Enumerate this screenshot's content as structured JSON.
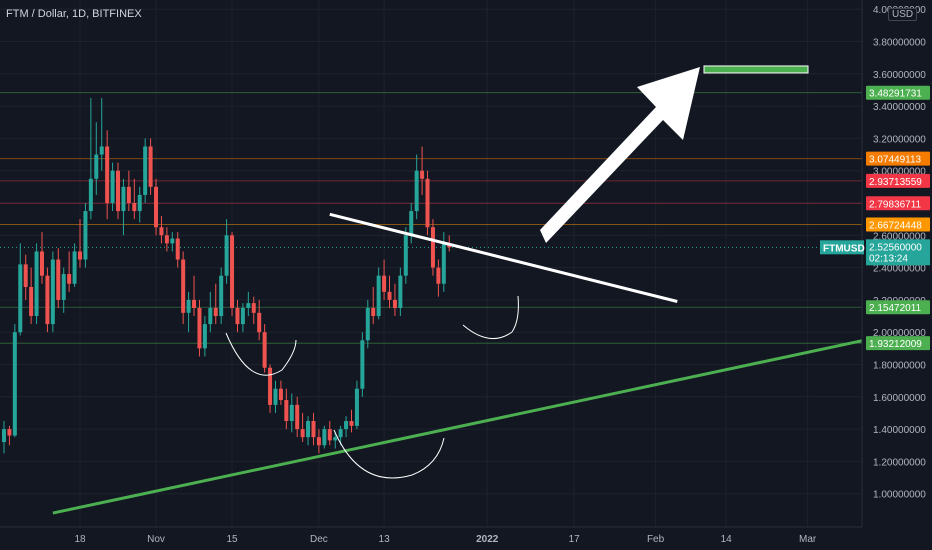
{
  "header": {
    "title": "FTM / Dollar, 1D, BITFINEX",
    "currency": "USD"
  },
  "colors": {
    "background": "#131722",
    "up": "#26a69a",
    "down": "#ef5350",
    "axis_text": "#b2b5be",
    "grid": "#1e222d"
  },
  "chart_data": {
    "type": "candlestick",
    "symbol": "FTMUSD",
    "ylim": [
      0.8,
      4.0
    ],
    "y_ticks": [
      "1.00000000",
      "1.20000000",
      "1.40000000",
      "1.60000000",
      "1.80000000",
      "2.00000000",
      "2.20000000",
      "2.40000000",
      "2.60000000",
      "2.80000000",
      "3.00000000",
      "3.20000000",
      "3.40000000",
      "3.60000000",
      "3.80000000",
      "4.00000000"
    ],
    "y_tick_values": [
      1.0,
      1.2,
      1.4,
      1.6,
      1.8,
      2.0,
      2.2,
      2.4,
      2.6,
      2.8,
      3.0,
      3.2,
      3.4,
      3.6,
      3.8,
      4.0
    ],
    "x_ticks": [
      {
        "label": "18",
        "day": 0
      },
      {
        "label": "Nov",
        "day": 14
      },
      {
        "label": "15",
        "day": 28
      },
      {
        "label": "Dec",
        "day": 44
      },
      {
        "label": "13",
        "day": 56
      },
      {
        "label": "2022",
        "day": 75
      },
      {
        "label": "17",
        "day": 91
      },
      {
        "label": "Feb",
        "day": 106
      },
      {
        "label": "14",
        "day": 119
      },
      {
        "label": "Mar",
        "day": 134
      }
    ],
    "start_day": -14,
    "candles": [
      [
        1.32,
        1.45,
        1.25,
        1.4
      ],
      [
        1.4,
        1.42,
        1.3,
        1.36
      ],
      [
        1.36,
        2.05,
        1.35,
        2.0
      ],
      [
        2.0,
        2.55,
        1.98,
        2.42
      ],
      [
        2.42,
        2.48,
        2.2,
        2.28
      ],
      [
        2.28,
        2.4,
        2.05,
        2.1
      ],
      [
        2.1,
        2.55,
        2.05,
        2.5
      ],
      [
        2.5,
        2.62,
        2.3,
        2.35
      ],
      [
        2.35,
        2.4,
        2.0,
        2.05
      ],
      [
        2.05,
        2.5,
        2.0,
        2.45
      ],
      [
        2.45,
        2.52,
        2.15,
        2.2
      ],
      [
        2.2,
        2.4,
        2.12,
        2.36
      ],
      [
        2.36,
        2.5,
        2.25,
        2.3
      ],
      [
        2.3,
        2.55,
        2.28,
        2.5
      ],
      [
        2.5,
        2.7,
        2.4,
        2.45
      ],
      [
        2.45,
        2.8,
        2.4,
        2.75
      ],
      [
        2.75,
        3.45,
        2.7,
        2.95
      ],
      [
        2.95,
        3.3,
        2.85,
        3.1
      ],
      [
        3.1,
        3.45,
        3.0,
        3.15
      ],
      [
        3.15,
        3.25,
        2.7,
        2.8
      ],
      [
        2.8,
        3.05,
        2.75,
        3.0
      ],
      [
        3.0,
        3.05,
        2.7,
        2.75
      ],
      [
        2.75,
        2.95,
        2.6,
        2.9
      ],
      [
        2.9,
        3.0,
        2.75,
        2.8
      ],
      [
        2.8,
        2.95,
        2.7,
        2.75
      ],
      [
        2.75,
        2.9,
        2.68,
        2.85
      ],
      [
        2.85,
        3.2,
        2.8,
        3.15
      ],
      [
        3.15,
        3.2,
        2.85,
        2.9
      ],
      [
        2.9,
        2.95,
        2.6,
        2.65
      ],
      [
        2.65,
        2.72,
        2.55,
        2.6
      ],
      [
        2.6,
        2.65,
        2.5,
        2.55
      ],
      [
        2.55,
        2.62,
        2.5,
        2.58
      ],
      [
        2.58,
        2.62,
        2.4,
        2.45
      ],
      [
        2.45,
        2.5,
        2.05,
        2.12
      ],
      [
        2.12,
        2.25,
        2.0,
        2.2
      ],
      [
        2.2,
        2.35,
        2.1,
        2.15
      ],
      [
        2.15,
        2.2,
        1.85,
        1.9
      ],
      [
        1.9,
        2.1,
        1.85,
        2.05
      ],
      [
        2.05,
        2.25,
        2.0,
        2.15
      ],
      [
        2.15,
        2.3,
        2.05,
        2.1
      ],
      [
        2.1,
        2.4,
        2.05,
        2.35
      ],
      [
        2.35,
        2.7,
        2.3,
        2.6
      ],
      [
        2.6,
        2.62,
        2.1,
        2.15
      ],
      [
        2.15,
        2.2,
        2.0,
        2.05
      ],
      [
        2.05,
        2.18,
        2.0,
        2.15
      ],
      [
        2.15,
        2.25,
        2.1,
        2.18
      ],
      [
        2.18,
        2.22,
        2.05,
        2.12
      ],
      [
        2.12,
        2.2,
        1.95,
        2.0
      ],
      [
        2.0,
        2.05,
        1.75,
        1.78
      ],
      [
        1.78,
        1.8,
        1.5,
        1.55
      ],
      [
        1.55,
        1.7,
        1.5,
        1.65
      ],
      [
        1.65,
        1.7,
        1.55,
        1.58
      ],
      [
        1.58,
        1.65,
        1.4,
        1.45
      ],
      [
        1.45,
        1.62,
        1.38,
        1.55
      ],
      [
        1.55,
        1.6,
        1.35,
        1.4
      ],
      [
        1.4,
        1.5,
        1.32,
        1.35
      ],
      [
        1.35,
        1.48,
        1.3,
        1.45
      ],
      [
        1.45,
        1.5,
        1.3,
        1.35
      ],
      [
        1.35,
        1.4,
        1.25,
        1.3
      ],
      [
        1.3,
        1.42,
        1.28,
        1.4
      ],
      [
        1.4,
        1.45,
        1.3,
        1.33
      ],
      [
        1.33,
        1.38,
        1.28,
        1.35
      ],
      [
        1.35,
        1.42,
        1.3,
        1.4
      ],
      [
        1.4,
        1.48,
        1.35,
        1.45
      ],
      [
        1.45,
        1.52,
        1.38,
        1.42
      ],
      [
        1.42,
        1.7,
        1.4,
        1.65
      ],
      [
        1.65,
        2.0,
        1.6,
        1.95
      ],
      [
        1.95,
        2.2,
        1.9,
        2.15
      ],
      [
        2.15,
        2.28,
        2.05,
        2.1
      ],
      [
        2.1,
        2.4,
        2.08,
        2.35
      ],
      [
        2.35,
        2.45,
        2.2,
        2.25
      ],
      [
        2.25,
        2.35,
        2.15,
        2.2
      ],
      [
        2.2,
        2.3,
        2.1,
        2.15
      ],
      [
        2.15,
        2.4,
        2.1,
        2.35
      ],
      [
        2.35,
        2.65,
        2.3,
        2.6
      ],
      [
        2.6,
        2.8,
        2.55,
        2.75
      ],
      [
        2.75,
        3.1,
        2.7,
        3.0
      ],
      [
        3.0,
        3.15,
        2.85,
        2.95
      ],
      [
        2.95,
        3.0,
        2.6,
        2.65
      ],
      [
        2.65,
        2.7,
        2.35,
        2.4
      ],
      [
        2.4,
        2.45,
        2.22,
        2.3
      ],
      [
        2.3,
        2.62,
        2.25,
        2.55
      ],
      [
        2.55,
        2.6,
        2.5,
        2.5256
      ]
    ],
    "price_labels": [
      {
        "value": 3.48291731,
        "label": "3.48291731",
        "color": "#4caf50"
      },
      {
        "value": 3.07449113,
        "label": "3.07449113",
        "color": "#f57c00"
      },
      {
        "value": 2.93713559,
        "label": "2.93713559",
        "color": "#f23645"
      },
      {
        "value": 2.79836711,
        "label": "2.79836711",
        "color": "#f23645"
      },
      {
        "value": 2.66724448,
        "label": "2.66724448",
        "color": "#ff9800"
      },
      {
        "value": 2.15472011,
        "label": "2.15472011",
        "color": "#4caf50"
      },
      {
        "value": 1.93212009,
        "label": "1.93212009",
        "color": "#4caf50"
      }
    ],
    "current": {
      "symbol": "FTMUSD",
      "value": 2.5256,
      "label": "2.52560000",
      "countdown": "02:13:24",
      "color": "#26a69a"
    },
    "annotations": {
      "target_box": {
        "price": 3.63
      },
      "neckline": {
        "from": [
          46,
          2.73
        ],
        "to": [
          110,
          2.19
        ]
      },
      "support": {
        "from": [
          -5,
          0.88
        ],
        "to": [
          150,
          1.99
        ]
      }
    }
  }
}
